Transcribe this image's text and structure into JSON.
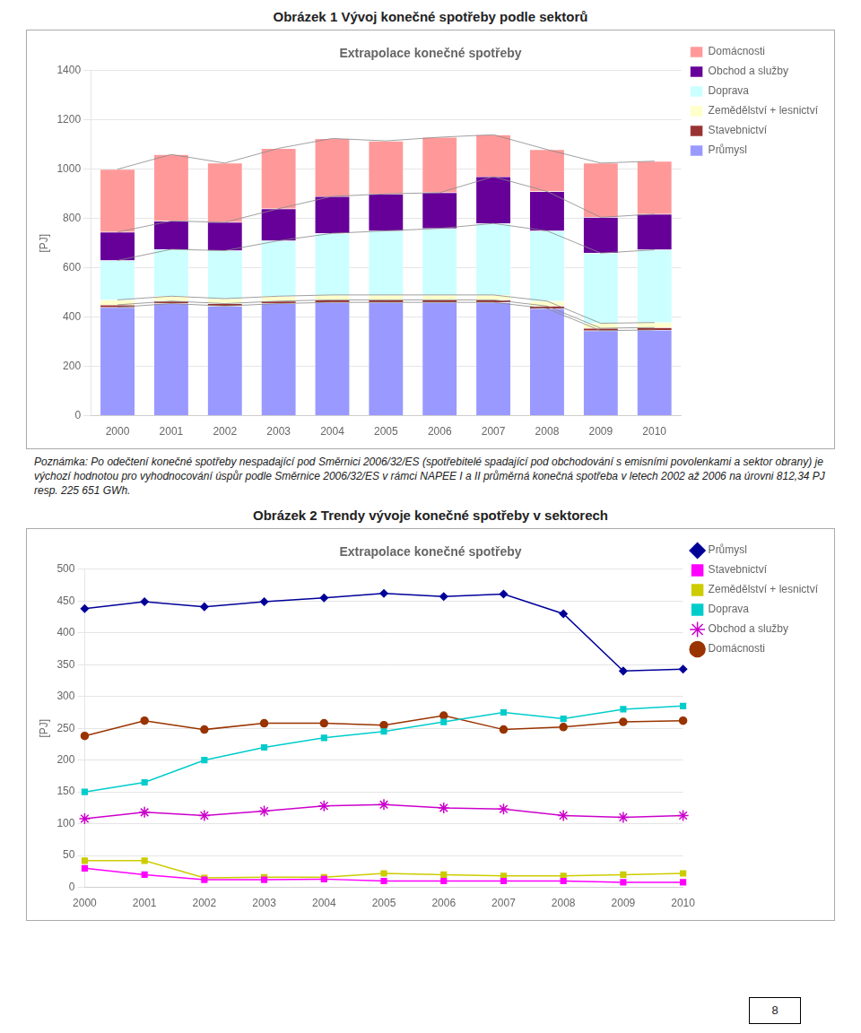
{
  "chart_data": [
    {
      "type": "bar",
      "title": "Obrázek 1 Vývoj konečné spotřeby podle sektorů",
      "subtitle": "Extrapolace konečné spotřeby",
      "y_label": "[PJ]",
      "categories": [
        "2000",
        "2001",
        "2002",
        "2003",
        "2004",
        "2005",
        "2006",
        "2007",
        "2008",
        "2009",
        "2010"
      ],
      "stacked": true,
      "series": [
        {
          "name": "Průmysl",
          "color": "#9999FF",
          "values": [
            440,
            455,
            445,
            455,
            460,
            460,
            460,
            460,
            435,
            345,
            348
          ]
        },
        {
          "name": "Stavebnictví",
          "color": "#993333",
          "values": [
            10,
            10,
            10,
            10,
            10,
            10,
            10,
            10,
            10,
            10,
            10
          ]
        },
        {
          "name": "Zemědělství + lesnictví",
          "color": "#FFFFCC",
          "values": [
            20,
            20,
            20,
            20,
            20,
            20,
            20,
            20,
            20,
            20,
            20
          ]
        },
        {
          "name": "Doprava",
          "color": "#CCFFFF",
          "values": [
            160,
            190,
            195,
            225,
            250,
            260,
            270,
            290,
            285,
            285,
            295
          ]
        },
        {
          "name": "Obchod a služby",
          "color": "#660099",
          "values": [
            115,
            115,
            115,
            130,
            150,
            150,
            145,
            190,
            160,
            145,
            145
          ]
        },
        {
          "name": "Domácnosti",
          "color": "#FF9999",
          "values": [
            255,
            270,
            240,
            245,
            235,
            215,
            225,
            170,
            170,
            220,
            215
          ]
        }
      ],
      "ylim": [
        0,
        1400
      ],
      "yticks": [
        0,
        200,
        400,
        600,
        800,
        1000,
        1200,
        1400
      ],
      "grid": "y",
      "legend": "right",
      "annotations": [
        "Poznámka: Po odečtení konečné spotřeby nespadající pod Směrnici 2006/32/ES (spotřebitelé spadající pod obchodování s emisními povolenkami a sektor obrany) je výchozí hodnotou pro vyhodnocování úspůr podle Směrnice 2006/32/ES v rámci NAPEE I a II průměrná konečná spotřeba v letech 2002 až 2006 na úrovni 812,34 PJ resp. 225 651 GWh."
      ]
    },
    {
      "type": "line",
      "title": "Obrázek 2 Trendy vývoje konečné spotřeby v sektorech",
      "subtitle": "Extrapolace konečné spotřeby",
      "y_label": "[PJ]",
      "categories": [
        "2000",
        "2001",
        "2002",
        "2003",
        "2004",
        "2005",
        "2006",
        "2007",
        "2008",
        "2009",
        "2010"
      ],
      "series": [
        {
          "name": "Průmysl",
          "color": "#000099",
          "marker": "diamond",
          "values": [
            438,
            449,
            441,
            449,
            455,
            462,
            457,
            461,
            430,
            340,
            343
          ]
        },
        {
          "name": "Stavebnictví",
          "color": "#FF00FF",
          "marker": "square",
          "values": [
            30,
            20,
            12,
            12,
            13,
            10,
            10,
            10,
            10,
            8,
            8
          ]
        },
        {
          "name": "Zemědělství + lesnictví",
          "color": "#CCCC00",
          "marker": "square",
          "values": [
            42,
            42,
            15,
            16,
            16,
            22,
            20,
            18,
            18,
            20,
            22
          ]
        },
        {
          "name": "Doprava",
          "color": "#00CCCC",
          "marker": "square",
          "values": [
            150,
            165,
            200,
            220,
            235,
            245,
            260,
            275,
            265,
            280,
            285
          ]
        },
        {
          "name": "Obchod a služby",
          "color": "#CC00CC",
          "marker": "star",
          "values": [
            108,
            118,
            113,
            120,
            128,
            130,
            125,
            123,
            113,
            110,
            113
          ]
        },
        {
          "name": "Domácnosti",
          "color": "#993300",
          "marker": "circle",
          "values": [
            238,
            262,
            248,
            258,
            258,
            255,
            270,
            248,
            252,
            260,
            262
          ]
        }
      ],
      "ylim": [
        0,
        500
      ],
      "yticks": [
        0,
        50,
        100,
        150,
        200,
        250,
        300,
        350,
        400,
        450,
        500
      ],
      "grid": "y",
      "legend": "right",
      "annotations": [
        "8"
      ]
    }
  ]
}
